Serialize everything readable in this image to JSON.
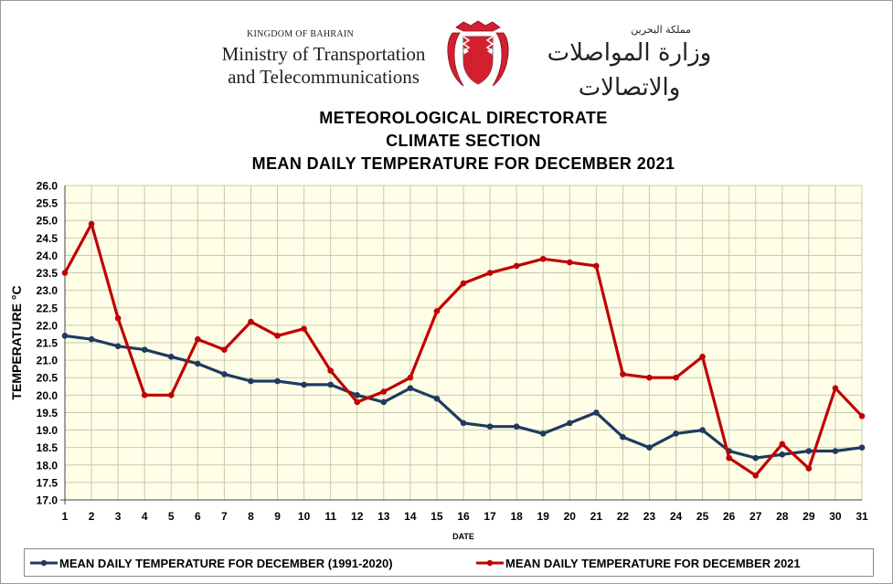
{
  "header": {
    "kingdom_en": "KINGDOM OF BAHRAIN",
    "ministry_en_line1": "Ministry of Transportation",
    "ministry_en_line2": "and Telecommunications",
    "kingdom_ar": "مملكة البحرين",
    "ministry_ar": "وزارة المواصلات والاتصالات",
    "crest_icon": "bahrain-coat-of-arms-icon"
  },
  "titles": {
    "line1": "METEOROLOGICAL  DIRECTORATE",
    "line2": "CLIMATE  SECTION",
    "line3": "MEAN  DAILY  TEMPERATURE  FOR  DECEMBER  2021"
  },
  "chart_data": {
    "type": "line",
    "title": "MEAN  DAILY  TEMPERATURE  FOR  DECEMBER  2021",
    "xlabel": "DATE",
    "ylabel": "TEMPERATURE °C",
    "x": [
      1,
      2,
      3,
      4,
      5,
      6,
      7,
      8,
      9,
      10,
      11,
      12,
      13,
      14,
      15,
      16,
      17,
      18,
      19,
      20,
      21,
      22,
      23,
      24,
      25,
      26,
      27,
      28,
      29,
      30,
      31
    ],
    "ylim": [
      17.0,
      26.0
    ],
    "ytick_step": 0.5,
    "grid": true,
    "legend_position": "bottom",
    "series": [
      {
        "name": "MEAN DAILY TEMPERATURE FOR DECEMBER (1991-2020)",
        "color": "#1f3a5f",
        "values": [
          21.7,
          21.6,
          21.4,
          21.3,
          21.1,
          20.9,
          20.6,
          20.4,
          20.4,
          20.3,
          20.3,
          20.0,
          19.8,
          20.2,
          19.9,
          19.2,
          19.1,
          19.1,
          18.9,
          19.2,
          19.5,
          18.8,
          18.5,
          18.9,
          19.0,
          18.4,
          18.2,
          18.3,
          18.4,
          18.4,
          18.5
        ]
      },
      {
        "name": "MEAN DAILY TEMPERATURE FOR DECEMBER 2021",
        "color": "#c00000",
        "values": [
          23.5,
          24.9,
          22.2,
          20.0,
          20.0,
          21.6,
          21.3,
          22.1,
          21.7,
          21.9,
          20.7,
          19.8,
          20.1,
          20.5,
          22.4,
          23.2,
          23.5,
          23.7,
          23.9,
          23.8,
          23.7,
          20.6,
          20.5,
          20.5,
          21.1,
          18.2,
          17.7,
          18.6,
          17.9,
          20.2,
          19.4
        ]
      }
    ]
  },
  "colors": {
    "plot_background": "#ffffe8",
    "grid": "#c9c9b2",
    "crest_red": "#d2202f"
  }
}
